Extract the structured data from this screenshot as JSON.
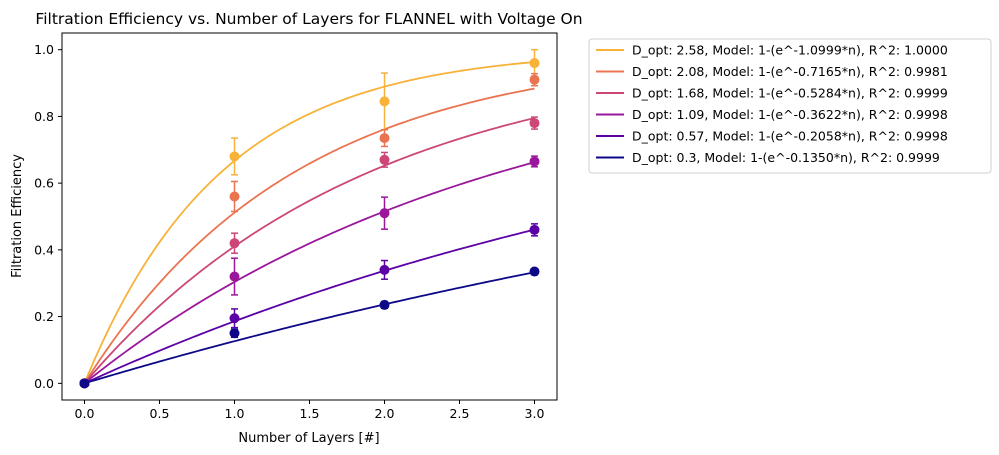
{
  "chart_data": {
    "type": "line",
    "title": "Filtration Efficiency vs. Number of Layers for FLANNEL with Voltage On",
    "xlabel": "Number of Layers [#]",
    "ylabel": "Filtration Efficiency",
    "xlim": [
      -0.15,
      3.15
    ],
    "ylim": [
      -0.05,
      1.05
    ],
    "xticks": [
      "0.0",
      "0.5",
      "1.0",
      "1.5",
      "2.0",
      "2.5",
      "3.0"
    ],
    "xtick_values": [
      0,
      0.5,
      1,
      1.5,
      2,
      2.5,
      3
    ],
    "yticks": [
      "0.0",
      "0.2",
      "0.4",
      "0.6",
      "0.8",
      "1.0"
    ],
    "ytick_values": [
      0,
      0.2,
      0.4,
      0.6,
      0.8,
      1.0
    ],
    "grid": false,
    "legend_position": "outside-right",
    "series": [
      {
        "name": "D_opt: 2.58, Model: 1-(e^-1.0999*n), R^2: 1.0000",
        "k": 1.0999,
        "color": "#f8b23a",
        "points": [
          {
            "x": 0,
            "y": 0.0,
            "err": 0.0
          },
          {
            "x": 1,
            "y": 0.68,
            "err": 0.055
          },
          {
            "x": 2,
            "y": 0.845,
            "err": 0.085
          },
          {
            "x": 3,
            "y": 0.96,
            "err": 0.04
          }
        ]
      },
      {
        "name": "D_opt: 2.08, Model: 1-(e^-0.7165*n), R^2: 0.9981",
        "k": 0.7165,
        "color": "#eb7450",
        "points": [
          {
            "x": 0,
            "y": 0.0,
            "err": 0.0
          },
          {
            "x": 1,
            "y": 0.56,
            "err": 0.045
          },
          {
            "x": 2,
            "y": 0.735,
            "err": 0.025
          },
          {
            "x": 3,
            "y": 0.91,
            "err": 0.018
          }
        ]
      },
      {
        "name": "D_opt: 1.68, Model: 1-(e^-0.5284*n), R^2: 0.9999",
        "k": 0.5284,
        "color": "#cc4778",
        "points": [
          {
            "x": 0,
            "y": 0.0,
            "err": 0.0
          },
          {
            "x": 1,
            "y": 0.42,
            "err": 0.03
          },
          {
            "x": 2,
            "y": 0.67,
            "err": 0.022
          },
          {
            "x": 3,
            "y": 0.78,
            "err": 0.018
          }
        ]
      },
      {
        "name": "D_opt: 1.09, Model: 1-(e^-0.3622*n), R^2: 0.9998",
        "k": 0.3622,
        "color": "#9a179b",
        "points": [
          {
            "x": 0,
            "y": 0.0,
            "err": 0.0
          },
          {
            "x": 1,
            "y": 0.32,
            "err": 0.055
          },
          {
            "x": 2,
            "y": 0.51,
            "err": 0.048
          },
          {
            "x": 3,
            "y": 0.665,
            "err": 0.016
          }
        ]
      },
      {
        "name": "D_opt: 0.57, Model: 1-(e^-0.2058*n), R^2: 0.9998",
        "k": 0.2058,
        "color": "#5c01a6",
        "points": [
          {
            "x": 0,
            "y": 0.0,
            "err": 0.0
          },
          {
            "x": 1,
            "y": 0.195,
            "err": 0.028
          },
          {
            "x": 2,
            "y": 0.34,
            "err": 0.028
          },
          {
            "x": 3,
            "y": 0.46,
            "err": 0.018
          }
        ]
      },
      {
        "name": "D_opt: 0.3, Model: 1-(e^-0.1350*n), R^2: 0.9999",
        "k": 0.135,
        "color": "#0d0887",
        "points": [
          {
            "x": 0,
            "y": 0.0,
            "err": 0.0
          },
          {
            "x": 1,
            "y": 0.15,
            "err": 0.012
          },
          {
            "x": 2,
            "y": 0.235,
            "err": 0.01
          },
          {
            "x": 3,
            "y": 0.335,
            "err": 0.008
          }
        ]
      }
    ]
  }
}
